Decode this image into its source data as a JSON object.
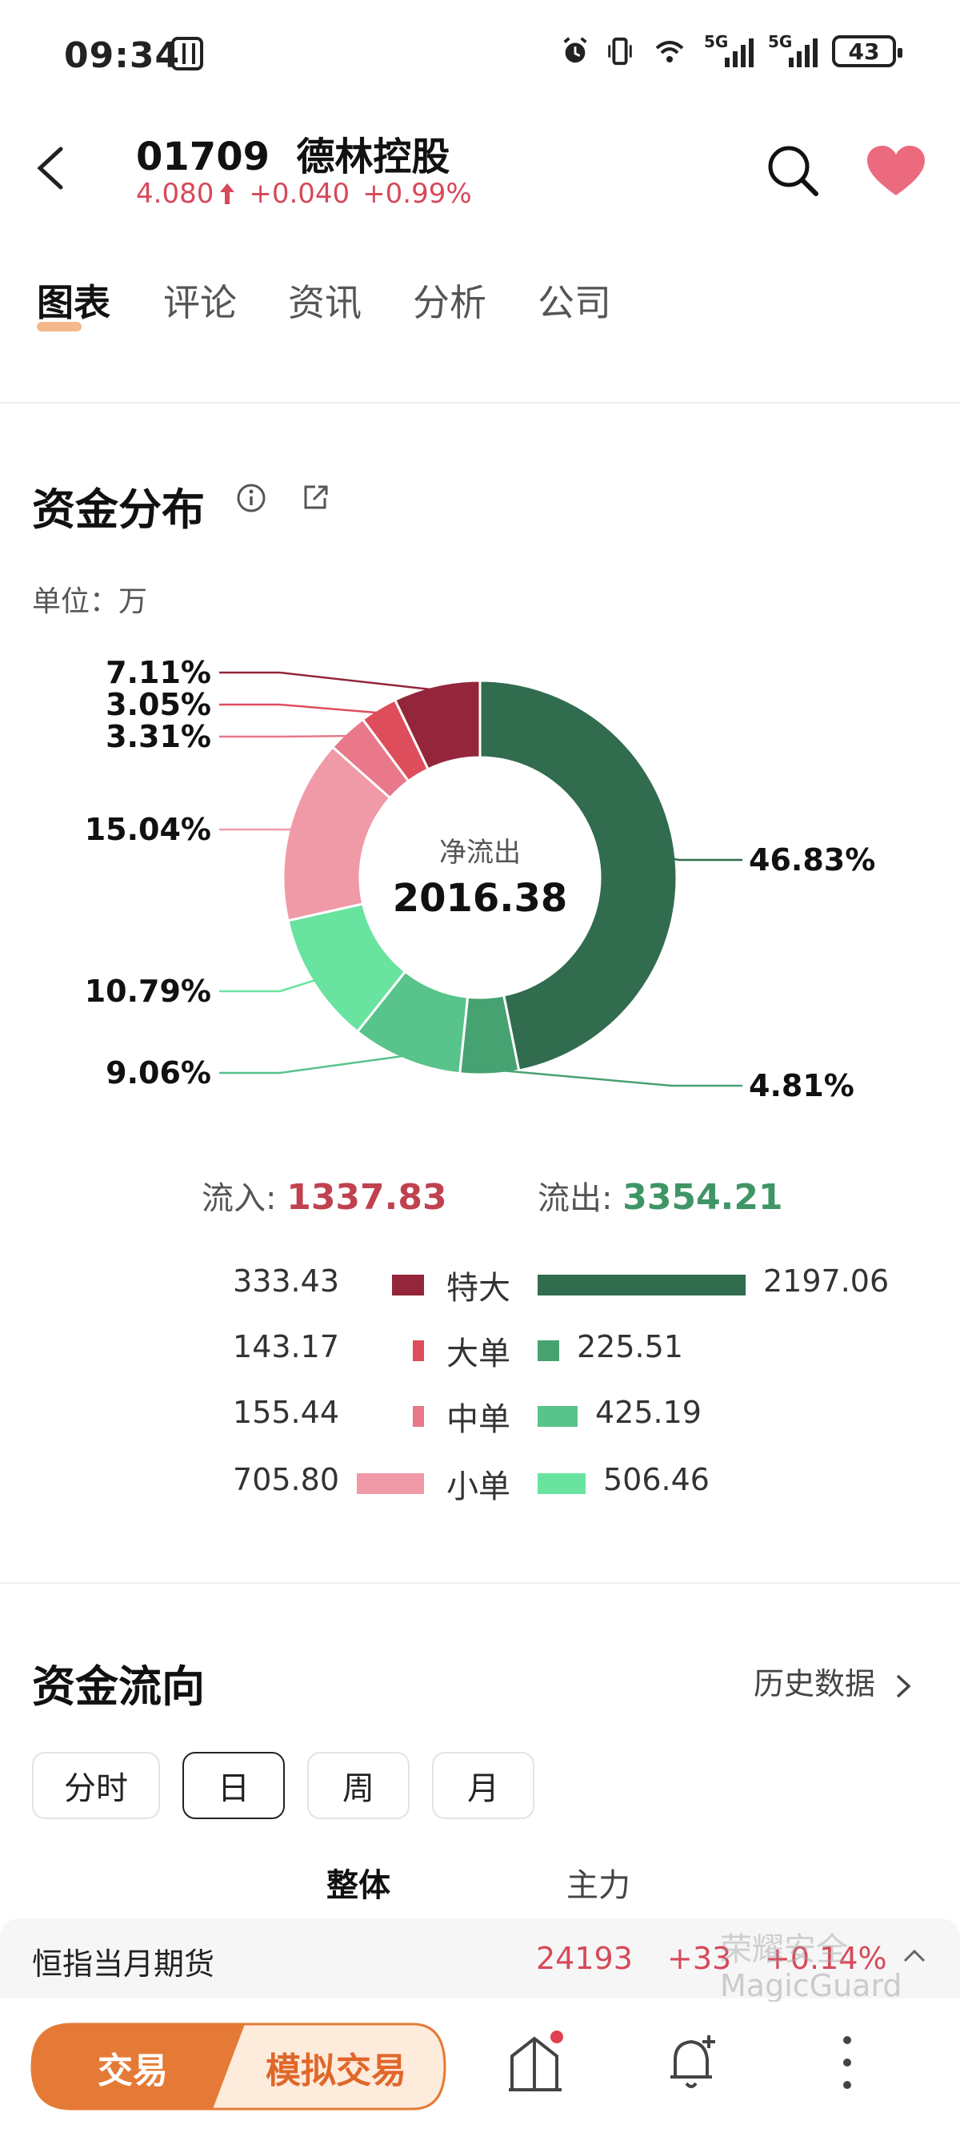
{
  "status_bar": {
    "time": "09:34",
    "battery": "43",
    "network_left": "5G",
    "network_right": "5G"
  },
  "header": {
    "code": "01709",
    "name": "德林控股",
    "price": "4.080",
    "change": "+0.040",
    "change_pct": "+0.99%",
    "up_color": "#d64a5a"
  },
  "tabs": [
    {
      "label": "图表",
      "active": true
    },
    {
      "label": "评论",
      "active": false
    },
    {
      "label": "资讯",
      "active": false
    },
    {
      "label": "分析",
      "active": false
    },
    {
      "label": "公司",
      "active": false
    }
  ],
  "fund_distribution": {
    "title": "资金分布",
    "unit_label": "单位：万",
    "center_label": "净流出",
    "center_value": "2016.38",
    "inflow_label": "流入:",
    "inflow_value": "1337.83",
    "outflow_label": "流出:",
    "outflow_value": "3354.21",
    "legend": [
      {
        "name": "特大",
        "in": "333.43",
        "out": "2197.06",
        "in_color": "#93263a",
        "out_color": "#316c4f"
      },
      {
        "name": "大单",
        "in": "143.17",
        "out": "225.51",
        "in_color": "#de4d5b",
        "out_color": "#47a272"
      },
      {
        "name": "中单",
        "in": "155.44",
        "out": "425.19",
        "in_color": "#e8788a",
        "out_color": "#58c38a"
      },
      {
        "name": "小单",
        "in": "705.80",
        "out": "506.46",
        "in_color": "#f09aa7",
        "out_color": "#69e3a0"
      }
    ]
  },
  "chart_data": {
    "type": "pie",
    "categories": [
      "特大流出",
      "大单流出",
      "中单流出",
      "小单流出",
      "小单流入",
      "中单流入",
      "大单流入",
      "特大流入"
    ],
    "values": [
      46.83,
      4.81,
      9.06,
      10.79,
      15.04,
      3.31,
      3.05,
      7.11
    ],
    "labels": [
      "46.83%",
      "4.81%",
      "9.06%",
      "10.79%",
      "15.04%",
      "3.31%",
      "3.05%",
      "7.11%"
    ],
    "colors": [
      "#316c4f",
      "#47a272",
      "#58c38a",
      "#69e3a0",
      "#f09aa7",
      "#e8788a",
      "#de4d5b",
      "#93263a"
    ]
  },
  "fund_flow": {
    "title": "资金流向",
    "history_link": "历史数据",
    "periods": [
      {
        "label": "分时",
        "selected": false
      },
      {
        "label": "日",
        "selected": true
      },
      {
        "label": "周",
        "selected": false
      },
      {
        "label": "月",
        "selected": false
      }
    ],
    "sub_tabs": [
      {
        "label": "整体",
        "selected": true
      },
      {
        "label": "主力",
        "selected": false
      }
    ]
  },
  "ticker": {
    "name": "恒指当月期货",
    "value": "24193",
    "change": "+33",
    "change_pct": "+0.14%",
    "watermark_cn": "荣耀安全",
    "watermark_en": "MagicGuard"
  },
  "bottom_bar": {
    "trade_label": "交易",
    "sim_trade_label": "模拟交易"
  }
}
